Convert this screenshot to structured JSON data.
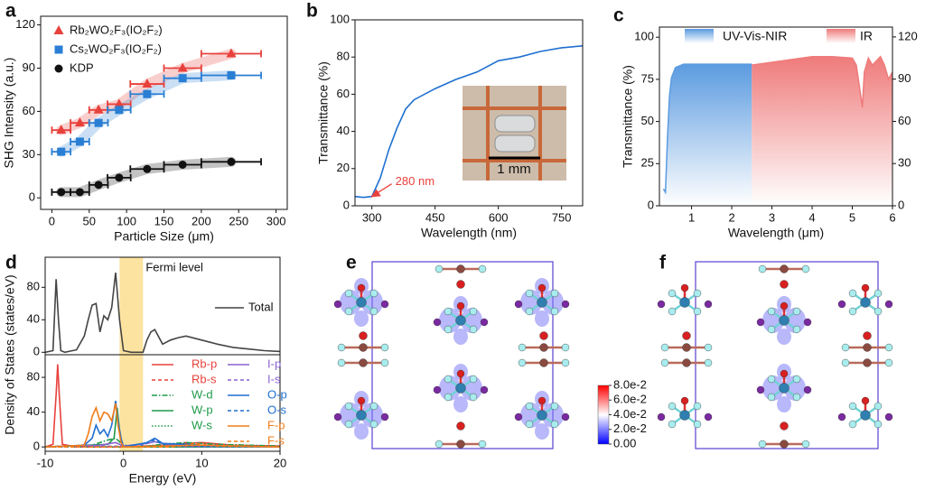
{
  "panel_labels": [
    "a",
    "b",
    "c",
    "d",
    "e",
    "f"
  ],
  "inset_scale_label": "1 mm",
  "colorbar": {
    "lim": [
      0,
      0.08
    ],
    "colors": [
      "#0000ff",
      "#ffffff",
      "#ff0000"
    ],
    "ticks": [
      {
        "value": 0.08,
        "label": "8.0e-2"
      },
      {
        "value": 0.06,
        "label": "6.0e-2"
      },
      {
        "value": 0.04,
        "label": "4.0e-2"
      },
      {
        "value": 0.02,
        "label": "2.0e-2"
      },
      {
        "value": 0,
        "label": "0.00"
      }
    ]
  },
  "chart_data": [
    {
      "type": "scatter",
      "xlabel": "Particle Size (μm)",
      "ylabel": "SHG Intensity (a.u.)",
      "xlim": [
        -15,
        315
      ],
      "ylim": [
        -8,
        126
      ],
      "xticks": [
        0,
        50,
        100,
        150,
        200,
        250,
        300
      ],
      "yticks": [
        0,
        30,
        60,
        90,
        120
      ],
      "legend": "upper left",
      "trend_band": true,
      "series": [
        {
          "name": "Rb₂WO₂F₃(IO₂F₂)",
          "color": "#e8413c",
          "marker": "triangle",
          "x": [
            12.5,
            37.5,
            62.5,
            90,
            127.5,
            175,
            240
          ],
          "x_err": [
            12.5,
            12.5,
            12.5,
            15.5,
            22.5,
            25,
            40
          ],
          "values": [
            47,
            52,
            61,
            65,
            79,
            90,
            100
          ]
        },
        {
          "name": "Cs₂WO₂F₃(IO₂F₂)",
          "color": "#2a7fd4",
          "marker": "square",
          "x": [
            12.5,
            37.5,
            62.5,
            90,
            127.5,
            175,
            240
          ],
          "x_err": [
            12.5,
            12.5,
            12.5,
            15.5,
            22.5,
            25,
            40
          ],
          "values": [
            32,
            39,
            52,
            61,
            72,
            83,
            85
          ]
        },
        {
          "name": "KDP",
          "color": "#111111",
          "marker": "circle",
          "x": [
            12.5,
            37.5,
            62.5,
            90,
            127.5,
            175,
            240
          ],
          "x_err": [
            12.5,
            12.5,
            12.5,
            15.5,
            22.5,
            25,
            40
          ],
          "values": [
            4,
            4,
            9,
            14,
            20,
            23,
            25
          ]
        }
      ]
    },
    {
      "type": "line",
      "xlabel": "Wavelength (nm)",
      "ylabel": "Transmittance (%)",
      "xlim": [
        260,
        800
      ],
      "ylim": [
        0,
        100
      ],
      "xticks": [
        300,
        450,
        600,
        750
      ],
      "yticks": [
        0,
        20,
        40,
        60,
        80,
        100
      ],
      "annotations": [
        {
          "text": "280 nm",
          "x": 300,
          "y": 5,
          "color": "#e8413c"
        }
      ],
      "series": [
        {
          "name": "Transmittance",
          "color": "#1f6fd0",
          "x": [
            260,
            280,
            300,
            320,
            340,
            360,
            380,
            400,
            450,
            500,
            550,
            600,
            650,
            700,
            750,
            800
          ],
          "values": [
            5,
            4.5,
            5,
            15,
            30,
            42,
            52,
            57,
            63,
            68,
            72,
            78,
            80,
            83,
            85,
            86
          ]
        }
      ]
    },
    {
      "type": "area",
      "xlabel": "Wavelength (μm)",
      "ylabel": "Transmittance (%)",
      "xlim": [
        0.2,
        6
      ],
      "ylim": [
        0,
        106
      ],
      "y2lim": [
        0,
        127
      ],
      "xticks": [
        1,
        2,
        3,
        4,
        5,
        6
      ],
      "yticks": [
        0,
        25,
        50,
        75,
        100
      ],
      "y2ticks": [
        0,
        30,
        60,
        90,
        120
      ],
      "legend": "top",
      "series": [
        {
          "name": "UV-Vis-NIR",
          "color": "#5b9be0",
          "x": [
            0.3,
            0.35,
            0.4,
            0.45,
            0.5,
            0.6,
            0.8,
            1,
            1.5,
            2,
            2.5
          ],
          "values": [
            10,
            8,
            40,
            65,
            76,
            82,
            84,
            84,
            84,
            84,
            84
          ]
        },
        {
          "name": "IR",
          "color": "#ef7b7b",
          "axis": "y2",
          "x": [
            2.5,
            3,
            3.5,
            4,
            4.5,
            5,
            5.1,
            5.2,
            5.25,
            5.3,
            5.4,
            5.5,
            5.7,
            5.8,
            5.9,
            6
          ],
          "values": [
            100,
            102,
            104,
            106,
            106,
            105,
            100,
            80,
            70,
            95,
            105,
            100,
            106,
            100,
            90,
            95
          ]
        }
      ]
    },
    {
      "type": "line",
      "ylabel": "Density of States (states/eV)",
      "xlim": [
        -10,
        20
      ],
      "ylim": [
        -3,
        117
      ],
      "yticks": [
        0,
        40,
        80
      ],
      "shade": {
        "xrange": [
          -0.5,
          2.5
        ],
        "color": "#fde3a0"
      },
      "annotations": [
        {
          "text": "Fermi level"
        }
      ],
      "legend": "right",
      "series": [
        {
          "name": "Total",
          "color": "#444444",
          "x": [
            -10,
            -9,
            -8.6,
            -8.3,
            -8,
            -7.5,
            -6,
            -5,
            -4.5,
            -4,
            -3.5,
            -3,
            -2.5,
            -2,
            -1.5,
            -1,
            -0.5,
            0,
            1,
            2,
            2.5,
            3,
            3.5,
            4,
            5,
            6,
            7,
            8,
            10,
            12,
            14,
            16,
            18,
            20
          ],
          "values": [
            0,
            2,
            90,
            40,
            2,
            0,
            3,
            20,
            40,
            58,
            60,
            25,
            45,
            40,
            55,
            98,
            40,
            2,
            0,
            0,
            0,
            15,
            25,
            28,
            10,
            15,
            18,
            20,
            15,
            10,
            6,
            4,
            2,
            1
          ]
        }
      ]
    },
    {
      "type": "line",
      "xlabel": "Energy (eV)",
      "xlim": [
        -10,
        20
      ],
      "ylim": [
        -5,
        106
      ],
      "xticks": [
        -10,
        0,
        10,
        20
      ],
      "yticks": [
        0,
        40,
        80
      ],
      "shade": {
        "xrange": [
          -0.5,
          2.5
        ],
        "color": "#fde3a0"
      },
      "legend": "two columns",
      "series": [
        {
          "name": "Rb-p",
          "color": "#e8413c",
          "dash": "solid",
          "x": [
            -10,
            -9,
            -8.6,
            -8.4,
            -8.2,
            -7.8,
            -6,
            0,
            5,
            8,
            10,
            14,
            20
          ],
          "values": [
            0,
            3,
            60,
            95,
            60,
            3,
            0,
            0,
            2,
            4,
            5,
            2,
            1
          ]
        },
        {
          "name": "Rb-s",
          "color": "#e8413c",
          "dash": "dashed",
          "x": [
            -10,
            5,
            7,
            8,
            9,
            12,
            20
          ],
          "values": [
            0,
            0,
            3,
            5,
            4,
            2,
            1
          ]
        },
        {
          "name": "W-d",
          "color": "#1e9a4a",
          "dash": "dashdot",
          "x": [
            -10,
            -4,
            -3,
            -2,
            -1,
            0,
            2,
            5,
            8,
            12,
            20
          ],
          "values": [
            0,
            2,
            5,
            8,
            10,
            2,
            0,
            3,
            5,
            3,
            1
          ]
        },
        {
          "name": "W-p",
          "color": "#1e9a4a",
          "dash": "solid",
          "x": [
            -10,
            -2,
            -1.2,
            -0.8,
            -0.4,
            0,
            20
          ],
          "values": [
            0,
            3,
            10,
            45,
            10,
            0,
            0
          ]
        },
        {
          "name": "W-s",
          "color": "#1e9a4a",
          "dash": "dotted",
          "x": [
            -10,
            3,
            4,
            5,
            20
          ],
          "values": [
            0,
            0,
            2,
            1,
            0
          ]
        },
        {
          "name": "I-p",
          "color": "#8a63d2",
          "dash": "solid",
          "x": [
            -10,
            -3,
            -1,
            0,
            3,
            4,
            6,
            20
          ],
          "values": [
            0,
            2,
            5,
            1,
            4,
            6,
            2,
            0
          ]
        },
        {
          "name": "I-s",
          "color": "#8a63d2",
          "dash": "dashed",
          "x": [
            -10,
            -6,
            -5,
            -4,
            20
          ],
          "values": [
            0,
            0,
            3,
            1,
            0
          ]
        },
        {
          "name": "O-p",
          "color": "#1f6fd0",
          "dash": "solid",
          "x": [
            -10,
            -5,
            -4,
            -3.5,
            -3,
            -2.5,
            -2,
            -1.5,
            -1,
            -0.7,
            -0.3,
            0,
            3,
            4,
            5,
            8,
            10,
            20
          ],
          "values": [
            0,
            2,
            10,
            25,
            15,
            20,
            12,
            25,
            53,
            30,
            10,
            0,
            5,
            10,
            4,
            3,
            2,
            0
          ]
        },
        {
          "name": "O-s",
          "color": "#1f6fd0",
          "dash": "dashed",
          "x": [
            -10,
            2,
            3,
            4,
            5,
            6,
            20
          ],
          "values": [
            0,
            0,
            5,
            8,
            3,
            1,
            0
          ]
        },
        {
          "name": "F-p",
          "color": "#f07d1a",
          "dash": "solid",
          "x": [
            -10,
            -5,
            -4.5,
            -4,
            -3.5,
            -3,
            -2.5,
            -2,
            -1.5,
            -1,
            -0.7,
            -0.3,
            0,
            5,
            10,
            20
          ],
          "values": [
            0,
            2,
            15,
            35,
            45,
            30,
            40,
            38,
            30,
            50,
            25,
            5,
            0,
            1,
            2,
            0
          ]
        },
        {
          "name": "F-s",
          "color": "#f07d1a",
          "dash": "dashed",
          "x": [
            -10,
            6,
            8,
            9,
            10,
            12,
            20
          ],
          "values": [
            0,
            0,
            2,
            4,
            3,
            1,
            0
          ]
        }
      ]
    }
  ]
}
